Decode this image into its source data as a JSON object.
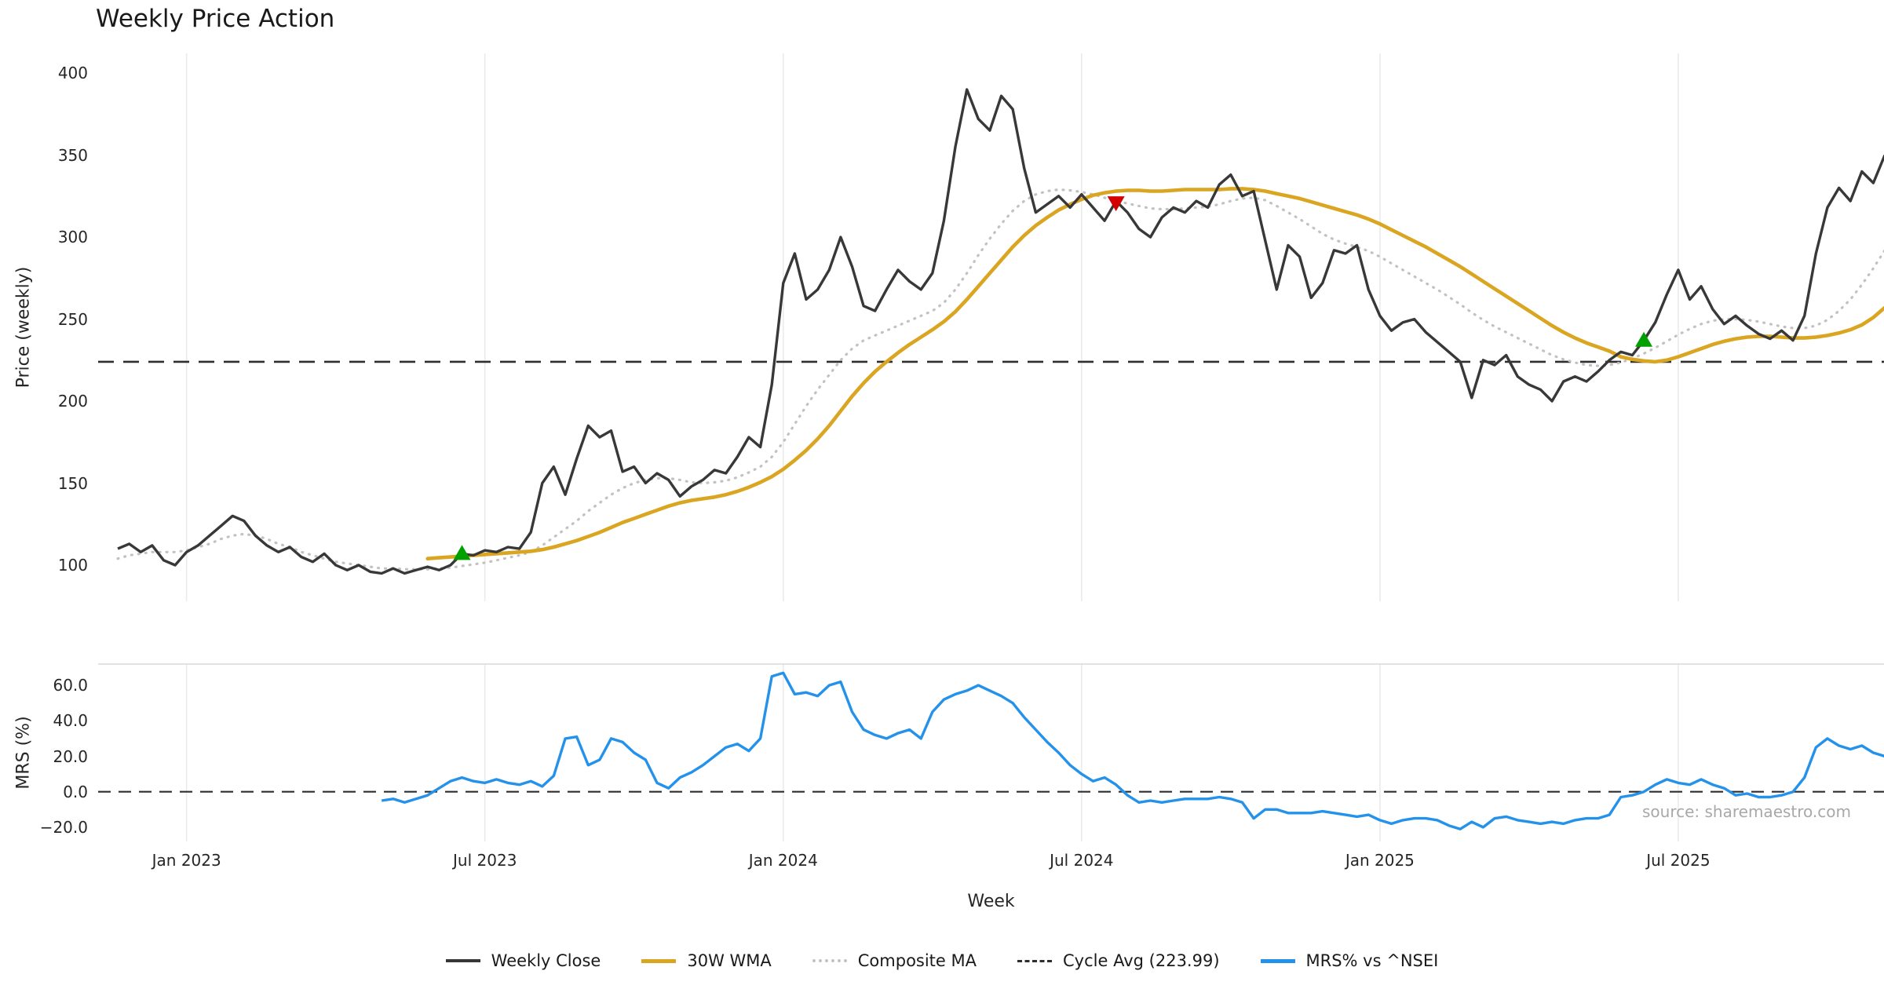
{
  "title": "Weekly Price Action",
  "source_note": "source: sharemaestro.com",
  "axes": {
    "price_ylabel": "Price (weekly)",
    "mrs_ylabel": "MRS (%)",
    "xlabel": "Week"
  },
  "legend": {
    "items": [
      {
        "label": "Weekly Close",
        "color": "#383838",
        "style": "solid"
      },
      {
        "label": "30W WMA",
        "color": "#DAA520",
        "style": "solid-thick"
      },
      {
        "label": "Composite MA",
        "color": "#c2c2c2",
        "style": "dotted"
      },
      {
        "label": "Cycle Avg (223.99)",
        "color": "#2e2e2e",
        "style": "dashed"
      },
      {
        "label": "MRS% vs ^NSEI",
        "color": "#2492ea",
        "style": "solid-thick"
      }
    ]
  },
  "chart_data": {
    "type": "line",
    "title": "Weekly Price Action",
    "xlabel": "Week",
    "x_unit": "week index of weekly series (0 = first plotted week, late 2022)",
    "grid": "light vertical gridlines at x ticks",
    "legend_position": "bottom center",
    "xticks": [
      {
        "index": 6,
        "label": "Jan 2023"
      },
      {
        "index": 32,
        "label": "Jul 2023"
      },
      {
        "index": 58,
        "label": "Jan 2024"
      },
      {
        "index": 84,
        "label": "Jul 2024"
      },
      {
        "index": 110,
        "label": "Jan 2025"
      },
      {
        "index": 136,
        "label": "Jul 2025"
      }
    ],
    "price_panel": {
      "ylabel": "Price (weekly)",
      "ylim": [
        78,
        412
      ],
      "yticks": [
        {
          "value": 100,
          "label": "100"
        },
        {
          "value": 150,
          "label": "150"
        },
        {
          "value": 200,
          "label": "200"
        },
        {
          "value": 250,
          "label": "250"
        },
        {
          "value": 300,
          "label": "300"
        },
        {
          "value": 350,
          "label": "350"
        },
        {
          "value": 400,
          "label": "400"
        }
      ],
      "cycle_avg": {
        "value": 223.99,
        "label": "Cycle Avg (223.99)"
      },
      "series": [
        {
          "name": "Weekly Close",
          "color": "#383838",
          "start_index": 0,
          "values": [
            110,
            113,
            108,
            112,
            103,
            100,
            108,
            112,
            118,
            124,
            130,
            127,
            118,
            112,
            108,
            111,
            105,
            102,
            107,
            100,
            97,
            100,
            96,
            95,
            98,
            95,
            97,
            99,
            97,
            100,
            107,
            106,
            109,
            108,
            111,
            110,
            120,
            150,
            160,
            143,
            165,
            185,
            178,
            182,
            157,
            160,
            150,
            156,
            152,
            142,
            148,
            152,
            158,
            156,
            166,
            178,
            172,
            210,
            272,
            290,
            262,
            268,
            280,
            300,
            282,
            258,
            255,
            268,
            280,
            273,
            268,
            278,
            310,
            355,
            390,
            372,
            365,
            386,
            378,
            342,
            315,
            320,
            325,
            318,
            326,
            318,
            310,
            322,
            315,
            305,
            300,
            312,
            318,
            315,
            322,
            318,
            332,
            338,
            325,
            328,
            298,
            268,
            295,
            288,
            263,
            272,
            292,
            290,
            295,
            268,
            252,
            243,
            248,
            250,
            242,
            236,
            230,
            224,
            202,
            225,
            222,
            228,
            215,
            210,
            207,
            200,
            212,
            215,
            212,
            218,
            225,
            230,
            228,
            237,
            248,
            265,
            280,
            262,
            270,
            256,
            247,
            252,
            246,
            241,
            238,
            243,
            237,
            252,
            290,
            318,
            330,
            322,
            340,
            333,
            350
          ]
        },
        {
          "name": "30W WMA",
          "color": "#DAA520",
          "start_index": 27,
          "values": [
            104,
            104.5,
            105,
            105.5,
            106,
            106.5,
            107,
            107.5,
            108,
            108.5,
            109.5,
            111,
            113,
            115,
            117.5,
            120,
            123,
            126,
            128.5,
            131,
            133.5,
            136,
            138,
            139.5,
            140.5,
            141.5,
            143,
            145,
            147.5,
            150.5,
            154,
            158.5,
            164,
            170,
            177,
            185,
            194,
            203,
            211,
            218,
            224,
            229.5,
            234.5,
            239,
            243.5,
            248.5,
            254.5,
            262,
            270,
            278,
            286,
            294,
            301,
            307,
            312,
            316.5,
            320,
            323,
            325.5,
            327,
            328,
            328.5,
            328.5,
            328,
            328,
            328.5,
            329,
            329,
            329,
            329,
            329.5,
            329.5,
            329,
            328,
            326.5,
            325,
            323.5,
            321.5,
            319.5,
            317.5,
            315.5,
            313.5,
            311,
            308,
            304.5,
            301,
            297.5,
            294,
            290,
            286,
            282,
            277.5,
            273,
            268.5,
            264,
            259.5,
            255,
            250.5,
            246,
            242,
            238.5,
            235.5,
            233,
            230.5,
            227,
            225.5,
            224.5,
            224,
            225,
            227,
            229.5,
            232,
            234.5,
            236.5,
            238,
            239,
            239.5,
            239.5,
            239,
            238.5,
            238.5,
            239,
            240,
            241.5,
            243.5,
            246.5,
            251,
            257
          ]
        },
        {
          "name": "Composite MA",
          "color": "#c2c2c2",
          "start_index": 0,
          "values": [
            104,
            106,
            107,
            108,
            108,
            108,
            109,
            111,
            113,
            116,
            118,
            119,
            118,
            116,
            113,
            111,
            108,
            106,
            104,
            102,
            101,
            100,
            99,
            98,
            98,
            97.5,
            97.5,
            97.5,
            98,
            98.5,
            99.5,
            100.5,
            101.5,
            103,
            104.5,
            106,
            108,
            112,
            117,
            122,
            127,
            133,
            138,
            143,
            147,
            150,
            152,
            153,
            153,
            152,
            150.5,
            150,
            150.5,
            151.5,
            153.5,
            156.5,
            160,
            166,
            175,
            186,
            197,
            207,
            216,
            225,
            232,
            237,
            240,
            243,
            246,
            249,
            252,
            255,
            260,
            268,
            278,
            289,
            299,
            308,
            316,
            322,
            326,
            328,
            329,
            328.5,
            327.5,
            326,
            324,
            322,
            320.5,
            319,
            317.5,
            317,
            317,
            317.5,
            318,
            318.5,
            320,
            322,
            323.5,
            324,
            322.5,
            319,
            315,
            311,
            306.5,
            302,
            298.5,
            296,
            294,
            291.5,
            288,
            284,
            280,
            276,
            272,
            268,
            263.5,
            259,
            254,
            249.5,
            245.5,
            242,
            238.5,
            235,
            231.5,
            228,
            225.5,
            223.5,
            222,
            221.5,
            222,
            223.5,
            226,
            229,
            232.5,
            236.5,
            240.5,
            244,
            247,
            249,
            250,
            250,
            249.5,
            248.5,
            247,
            245.5,
            244.5,
            244.5,
            246,
            249.5,
            255,
            262,
            271,
            281,
            292
          ]
        }
      ],
      "signals": [
        {
          "type": "buy",
          "week_index": 30,
          "price": 107,
          "color": "#00a000"
        },
        {
          "type": "sell",
          "week_index": 87,
          "price": 321,
          "color": "#d40000"
        },
        {
          "type": "buy",
          "week_index": 133,
          "price": 237,
          "color": "#00a000"
        }
      ]
    },
    "mrs_panel": {
      "ylabel": "MRS (%)",
      "ylim": [
        -28,
        72
      ],
      "yticks": [
        {
          "value": 60,
          "label": "60.0"
        },
        {
          "value": 40,
          "label": "40.0"
        },
        {
          "value": 20,
          "label": "20.0"
        },
        {
          "value": 0,
          "label": "0.0"
        },
        {
          "value": -20,
          "label": "−20.0"
        }
      ],
      "zero_line": 0,
      "series": [
        {
          "name": "MRS% vs ^NSEI",
          "color": "#2492ea",
          "start_index": 23,
          "values": [
            -5,
            -4,
            -6,
            -4,
            -2,
            2,
            6,
            8,
            6,
            5,
            7,
            5,
            4,
            6,
            3,
            9,
            30,
            31,
            15,
            18,
            30,
            28,
            22,
            18,
            5,
            2,
            8,
            11,
            15,
            20,
            25,
            27,
            23,
            30,
            65,
            67,
            55,
            56,
            54,
            60,
            62,
            45,
            35,
            32,
            30,
            33,
            35,
            30,
            45,
            52,
            55,
            57,
            60,
            57,
            54,
            50,
            42,
            35,
            28,
            22,
            15,
            10,
            6,
            8,
            4,
            -2,
            -6,
            -5,
            -6,
            -5,
            -4,
            -4,
            -4,
            -3,
            -4,
            -6,
            -15,
            -10,
            -10,
            -12,
            -12,
            -12,
            -11,
            -12,
            -13,
            -14,
            -13,
            -16,
            -18,
            -16,
            -15,
            -15,
            -16,
            -19,
            -21,
            -17,
            -20,
            -15,
            -14,
            -16,
            -17,
            -18,
            -17,
            -18,
            -16,
            -15,
            -15,
            -13,
            -3,
            -2,
            0,
            4,
            7,
            5,
            4,
            7,
            4,
            2,
            -2,
            -1,
            -3,
            -3,
            -2,
            0,
            8,
            25,
            30,
            26,
            24,
            26,
            22,
            20
          ]
        }
      ]
    }
  }
}
